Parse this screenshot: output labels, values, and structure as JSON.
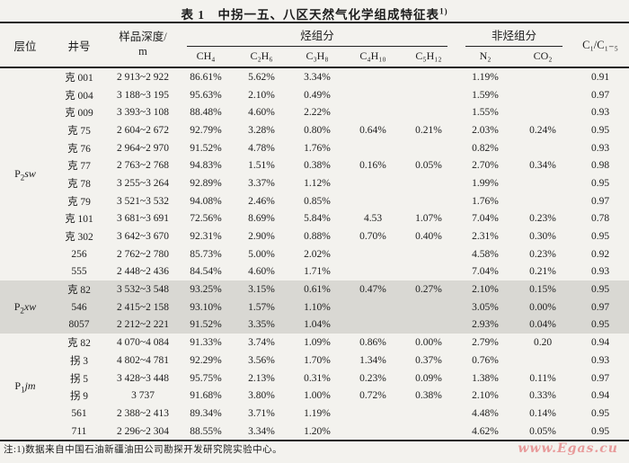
{
  "colors": {
    "page_bg": "#f3f2ee",
    "band_bg": "#d9d8d3",
    "ink": "#1c1c1c",
    "watermark": "#e89b9b"
  },
  "title": "表 1　中拐一五、八区天然气化学组成特征表",
  "title_sup": "1)",
  "note": "注:1)数据来自中国石油新疆油田公司勘探开发研究院实验中心。",
  "watermark": "www.Egas.cu",
  "columns": {
    "stratum": "层位",
    "well": "井号",
    "depth_line1": "样品深度/",
    "depth_line2": "m",
    "hydrocarbon_group": "烃组分",
    "non_hydrocarbon_group": "非烃组分",
    "ch4": "CH₄",
    "c2h6": "C₂H₆",
    "c3h8": "C₃H₈",
    "c4h10": "C₄H₁₀",
    "c5h12": "C₅H₁₂",
    "n2": "N₂",
    "co2": "CO₂",
    "ratio": "C₁/C₁₋₅"
  },
  "sections": [
    {
      "stratum": {
        "prefix": "P",
        "sub": "2",
        "suffix": "sw"
      },
      "shaded": false,
      "rows": [
        {
          "well": "克 001",
          "depth": "2 913~2 922",
          "ch4": "86.61%",
          "c2h6": "5.62%",
          "c3h8": "3.34%",
          "c4h10": "",
          "c5h12": "",
          "n2": "1.19%",
          "co2": "",
          "ratio": "0.91"
        },
        {
          "well": "克 004",
          "depth": "3 188~3 195",
          "ch4": "95.63%",
          "c2h6": "2.10%",
          "c3h8": "0.49%",
          "c4h10": "",
          "c5h12": "",
          "n2": "1.59%",
          "co2": "",
          "ratio": "0.97"
        },
        {
          "well": "克 009",
          "depth": "3 393~3 108",
          "ch4": "88.48%",
          "c2h6": "4.60%",
          "c3h8": "2.22%",
          "c4h10": "",
          "c5h12": "",
          "n2": "1.55%",
          "co2": "",
          "ratio": "0.93"
        },
        {
          "well": "克 75",
          "depth": "2 604~2 672",
          "ch4": "92.79%",
          "c2h6": "3.28%",
          "c3h8": "0.80%",
          "c4h10": "0.64%",
          "c5h12": "0.21%",
          "n2": "2.03%",
          "co2": "0.24%",
          "ratio": "0.95"
        },
        {
          "well": "克 76",
          "depth": "2 964~2 970",
          "ch4": "91.52%",
          "c2h6": "4.78%",
          "c3h8": "1.76%",
          "c4h10": "",
          "c5h12": "",
          "n2": "0.82%",
          "co2": "",
          "ratio": "0.93"
        },
        {
          "well": "克 77",
          "depth": "2 763~2 768",
          "ch4": "94.83%",
          "c2h6": "1.51%",
          "c3h8": "0.38%",
          "c4h10": "0.16%",
          "c5h12": "0.05%",
          "n2": "2.70%",
          "co2": "0.34%",
          "ratio": "0.98"
        },
        {
          "well": "克 78",
          "depth": "3 255~3 264",
          "ch4": "92.89%",
          "c2h6": "3.37%",
          "c3h8": "1.12%",
          "c4h10": "",
          "c5h12": "",
          "n2": "1.99%",
          "co2": "",
          "ratio": "0.95"
        },
        {
          "well": "克 79",
          "depth": "3 521~3 532",
          "ch4": "94.08%",
          "c2h6": "2.46%",
          "c3h8": "0.85%",
          "c4h10": "",
          "c5h12": "",
          "n2": "1.76%",
          "co2": "",
          "ratio": "0.97"
        },
        {
          "well": "克 101",
          "depth": "3 681~3 691",
          "ch4": "72.56%",
          "c2h6": "8.69%",
          "c3h8": "5.84%",
          "c4h10": "4.53",
          "c5h12": "1.07%",
          "n2": "7.04%",
          "co2": "0.23%",
          "ratio": "0.78"
        },
        {
          "well": "克 302",
          "depth": "3 642~3 670",
          "ch4": "92.31%",
          "c2h6": "2.90%",
          "c3h8": "0.88%",
          "c4h10": "0.70%",
          "c5h12": "0.40%",
          "n2": "2.31%",
          "co2": "0.30%",
          "ratio": "0.95"
        },
        {
          "well": "256",
          "depth": "2 762~2 780",
          "ch4": "85.73%",
          "c2h6": "5.00%",
          "c3h8": "2.02%",
          "c4h10": "",
          "c5h12": "",
          "n2": "4.58%",
          "co2": "0.23%",
          "ratio": "0.92"
        },
        {
          "well": "555",
          "depth": "2 448~2 436",
          "ch4": "84.54%",
          "c2h6": "4.60%",
          "c3h8": "1.71%",
          "c4h10": "",
          "c5h12": "",
          "n2": "7.04%",
          "co2": "0.21%",
          "ratio": "0.93"
        }
      ]
    },
    {
      "stratum": {
        "prefix": "P",
        "sub": "2",
        "suffix": "xw"
      },
      "shaded": true,
      "rows": [
        {
          "well": "克 82",
          "depth": "3 532~3 548",
          "ch4": "93.25%",
          "c2h6": "3.15%",
          "c3h8": "0.61%",
          "c4h10": "0.47%",
          "c5h12": "0.27%",
          "n2": "2.10%",
          "co2": "0.15%",
          "ratio": "0.95"
        },
        {
          "well": "546",
          "depth": "2 415~2 158",
          "ch4": "93.10%",
          "c2h6": "1.57%",
          "c3h8": "1.10%",
          "c4h10": "",
          "c5h12": "",
          "n2": "3.05%",
          "co2": "0.00%",
          "ratio": "0.97"
        },
        {
          "well": "8057",
          "depth": "2 212~2 221",
          "ch4": "91.52%",
          "c2h6": "3.35%",
          "c3h8": "1.04%",
          "c4h10": "",
          "c5h12": "",
          "n2": "2.93%",
          "co2": "0.04%",
          "ratio": "0.95"
        }
      ]
    },
    {
      "stratum": {
        "prefix": "P",
        "sub": "1",
        "suffix": "jm"
      },
      "shaded": false,
      "rows": [
        {
          "well": "克 82",
          "depth": "4 070~4 084",
          "ch4": "91.33%",
          "c2h6": "3.74%",
          "c3h8": "1.09%",
          "c4h10": "0.86%",
          "c5h12": "0.00%",
          "n2": "2.79%",
          "co2": "0.20",
          "ratio": "0.94"
        },
        {
          "well": "拐 3",
          "depth": "4 802~4 781",
          "ch4": "92.29%",
          "c2h6": "3.56%",
          "c3h8": "1.70%",
          "c4h10": "1.34%",
          "c5h12": "0.37%",
          "n2": "0.76%",
          "co2": "",
          "ratio": "0.93"
        },
        {
          "well": "拐 5",
          "depth": "3 428~3 448",
          "ch4": "95.75%",
          "c2h6": "2.13%",
          "c3h8": "0.31%",
          "c4h10": "0.23%",
          "c5h12": "0.09%",
          "n2": "1.38%",
          "co2": "0.11%",
          "ratio": "0.97"
        },
        {
          "well": "拐 9",
          "depth": "3 737",
          "ch4": "91.68%",
          "c2h6": "3.80%",
          "c3h8": "1.00%",
          "c4h10": "0.72%",
          "c5h12": "0.38%",
          "n2": "2.10%",
          "co2": "0.33%",
          "ratio": "0.94"
        },
        {
          "well": "561",
          "depth": "2 388~2 413",
          "ch4": "89.34%",
          "c2h6": "3.71%",
          "c3h8": "1.19%",
          "c4h10": "",
          "c5h12": "",
          "n2": "4.48%",
          "co2": "0.14%",
          "ratio": "0.95"
        },
        {
          "well": "711",
          "depth": "2 296~2 304",
          "ch4": "88.55%",
          "c2h6": "3.34%",
          "c3h8": "1.20%",
          "c4h10": "",
          "c5h12": "",
          "n2": "4.62%",
          "co2": "0.05%",
          "ratio": "0.95"
        }
      ]
    }
  ]
}
